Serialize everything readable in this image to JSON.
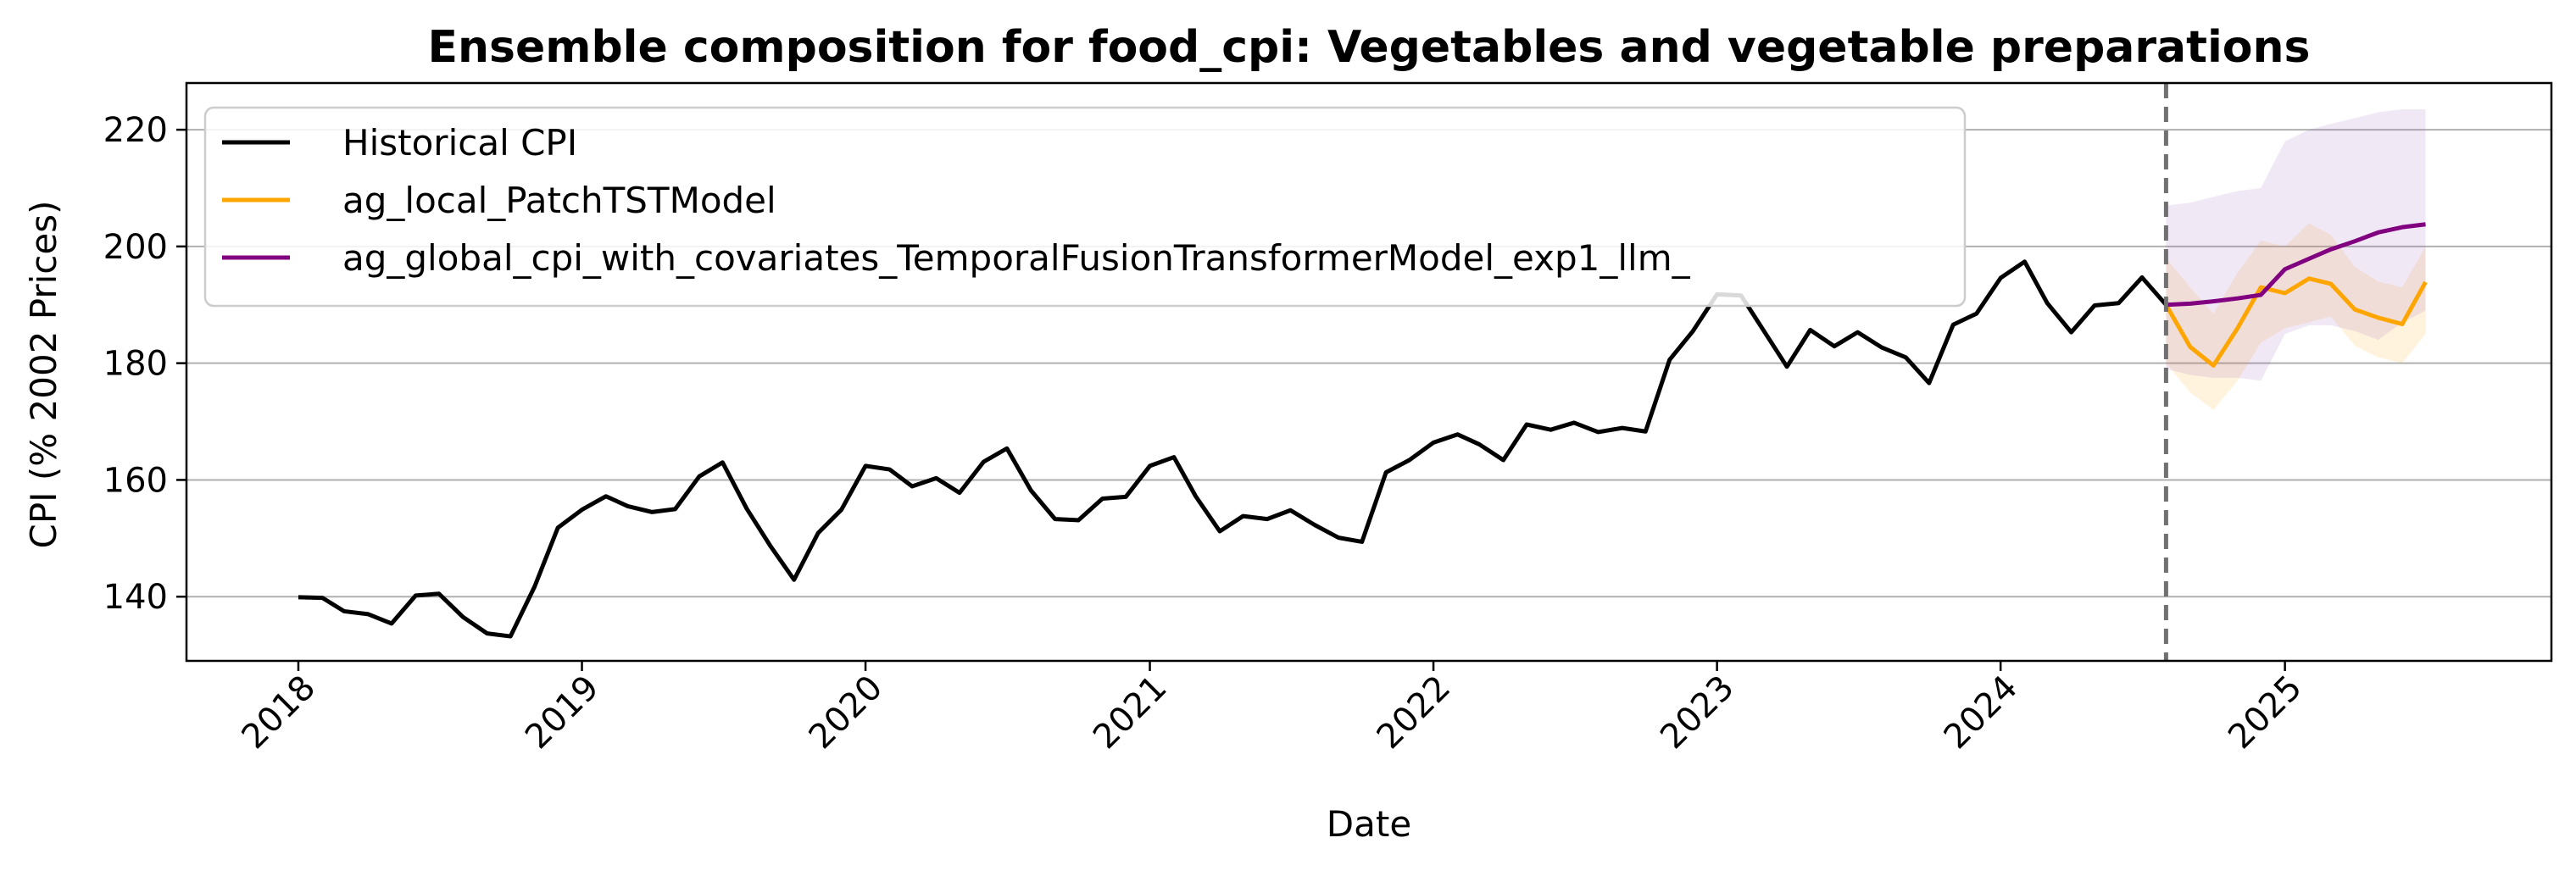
{
  "chart_data": {
    "type": "line",
    "title": "Ensemble composition for food_cpi: Vegetables and vegetable preparations",
    "xlabel": "Date",
    "ylabel": "CPI (% 2002 Prices)",
    "xlim": [
      "2017-08-10",
      "2025-12-10"
    ],
    "ylim": [
      129,
      228
    ],
    "grid": "horizontal",
    "legend_position": "top-left",
    "x_ticks": [
      "2018",
      "2019",
      "2020",
      "2021",
      "2022",
      "2023",
      "2024",
      "2025"
    ],
    "y_ticks": [
      140,
      160,
      180,
      200,
      220
    ],
    "forecast_start": "2024-08-01",
    "series": [
      {
        "name": "Historical CPI",
        "color": "#000000",
        "x": [
          "2018-01",
          "2018-02",
          "2018-03",
          "2018-04",
          "2018-05",
          "2018-06",
          "2018-07",
          "2018-08",
          "2018-09",
          "2018-10",
          "2018-11",
          "2018-12",
          "2019-01",
          "2019-02",
          "2019-03",
          "2019-04",
          "2019-05",
          "2019-06",
          "2019-07",
          "2019-08",
          "2019-09",
          "2019-10",
          "2019-11",
          "2019-12",
          "2020-01",
          "2020-02",
          "2020-03",
          "2020-04",
          "2020-05",
          "2020-06",
          "2020-07",
          "2020-08",
          "2020-09",
          "2020-10",
          "2020-11",
          "2020-12",
          "2021-01",
          "2021-02",
          "2021-03",
          "2021-04",
          "2021-05",
          "2021-06",
          "2021-07",
          "2021-08",
          "2021-09",
          "2021-10",
          "2021-11",
          "2021-12",
          "2022-01",
          "2022-02",
          "2022-03",
          "2022-04",
          "2022-05",
          "2022-06",
          "2022-07",
          "2022-08",
          "2022-09",
          "2022-10",
          "2022-11",
          "2022-12",
          "2023-01",
          "2023-02",
          "2023-03",
          "2023-04",
          "2023-05",
          "2023-06",
          "2023-07",
          "2023-08",
          "2023-09",
          "2023-10",
          "2023-11",
          "2023-12",
          "2024-01",
          "2024-02",
          "2024-03",
          "2024-04",
          "2024-05",
          "2024-06",
          "2024-07",
          "2024-08"
        ],
        "values": [
          139.9,
          139.8,
          137.5,
          137.0,
          135.4,
          140.2,
          140.5,
          136.5,
          133.7,
          133.2,
          141.7,
          151.8,
          154.9,
          157.2,
          155.5,
          154.5,
          155.0,
          160.6,
          163.0,
          155.1,
          148.6,
          142.9,
          150.9,
          154.9,
          162.4,
          161.8,
          158.9,
          160.3,
          157.8,
          163.1,
          165.4,
          158.2,
          153.3,
          153.1,
          156.8,
          157.1,
          162.4,
          163.9,
          157.2,
          151.2,
          153.8,
          153.3,
          154.8,
          152.3,
          150.1,
          149.4,
          161.3,
          163.4,
          166.4,
          167.8,
          166.1,
          163.4,
          169.5,
          168.6,
          169.8,
          168.2,
          168.9,
          168.3,
          180.6,
          185.5,
          191.8,
          191.6,
          185.8,
          179.4,
          185.7,
          182.9,
          185.3,
          182.7,
          181.0,
          176.6,
          186.6,
          188.5,
          194.6,
          197.4,
          190.3,
          185.3,
          189.9,
          190.3,
          194.7,
          190.0
        ]
      },
      {
        "name": "ag_local_PatchTSTModel",
        "color": "#ffa500",
        "band_color": "#ffa500",
        "x": [
          "2024-08",
          "2024-09",
          "2024-10",
          "2024-11",
          "2024-12",
          "2025-01",
          "2025-02",
          "2025-03",
          "2025-04",
          "2025-05",
          "2025-06",
          "2025-07"
        ],
        "values": [
          190.0,
          182.8,
          179.6,
          186.0,
          193.0,
          192.0,
          194.5,
          193.6,
          189.2,
          187.8,
          186.7,
          193.9
        ],
        "lower": [
          180.0,
          175.0,
          172.0,
          177.0,
          183.5,
          186.0,
          187.0,
          188.0,
          183.0,
          181.0,
          180.0,
          185.0
        ],
        "upper": [
          198.0,
          193.0,
          188.5,
          195.5,
          201.0,
          200.0,
          204.0,
          202.0,
          196.5,
          194.0,
          193.0,
          200.0
        ]
      },
      {
        "name": "ag_global_cpi_with_covariates_TemporalFusionTransformerModel_exp1_llm_",
        "color": "#800080",
        "band_color": "#9b59b6",
        "x": [
          "2024-08",
          "2024-09",
          "2024-10",
          "2024-11",
          "2024-12",
          "2025-01",
          "2025-02",
          "2025-03",
          "2025-04",
          "2025-05",
          "2025-06",
          "2025-07"
        ],
        "values": [
          190.0,
          190.2,
          190.6,
          191.1,
          191.7,
          196.1,
          197.9,
          199.5,
          200.9,
          202.4,
          203.3,
          203.8
        ],
        "lower": [
          179.0,
          178.0,
          177.5,
          177.5,
          177.0,
          185.0,
          186.5,
          186.5,
          185.5,
          184.0,
          187.0,
          189.0
        ],
        "upper": [
          207.0,
          207.5,
          208.5,
          209.5,
          210.0,
          218.0,
          220.0,
          221.0,
          222.0,
          223.0,
          223.5,
          223.5
        ]
      }
    ]
  }
}
